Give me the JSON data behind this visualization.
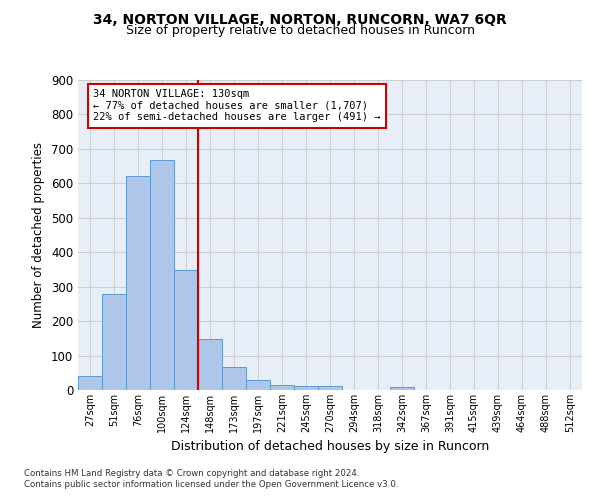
{
  "title1": "34, NORTON VILLAGE, NORTON, RUNCORN, WA7 6QR",
  "title2": "Size of property relative to detached houses in Runcorn",
  "xlabel": "Distribution of detached houses by size in Runcorn",
  "ylabel": "Number of detached properties",
  "bar_labels": [
    "27sqm",
    "51sqm",
    "76sqm",
    "100sqm",
    "124sqm",
    "148sqm",
    "173sqm",
    "197sqm",
    "221sqm",
    "245sqm",
    "270sqm",
    "294sqm",
    "318sqm",
    "342sqm",
    "367sqm",
    "391sqm",
    "415sqm",
    "439sqm",
    "464sqm",
    "488sqm",
    "512sqm"
  ],
  "bar_values": [
    42,
    280,
    620,
    668,
    347,
    148,
    66,
    29,
    15,
    12,
    12,
    0,
    0,
    10,
    0,
    0,
    0,
    0,
    0,
    0,
    0
  ],
  "bar_color": "#aec6e8",
  "bar_edgecolor": "#5b9bd5",
  "vline_x": 4.5,
  "vline_color": "#cc0000",
  "annotation_text": "34 NORTON VILLAGE: 130sqm\n← 77% of detached houses are smaller (1,707)\n22% of semi-detached houses are larger (491) →",
  "annotation_box_edgecolor": "#cc0000",
  "ylim": [
    0,
    900
  ],
  "yticks": [
    0,
    100,
    200,
    300,
    400,
    500,
    600,
    700,
    800,
    900
  ],
  "grid_color": "#cccccc",
  "bg_color": "#e8eef8",
  "footer1": "Contains HM Land Registry data © Crown copyright and database right 2024.",
  "footer2": "Contains public sector information licensed under the Open Government Licence v3.0."
}
